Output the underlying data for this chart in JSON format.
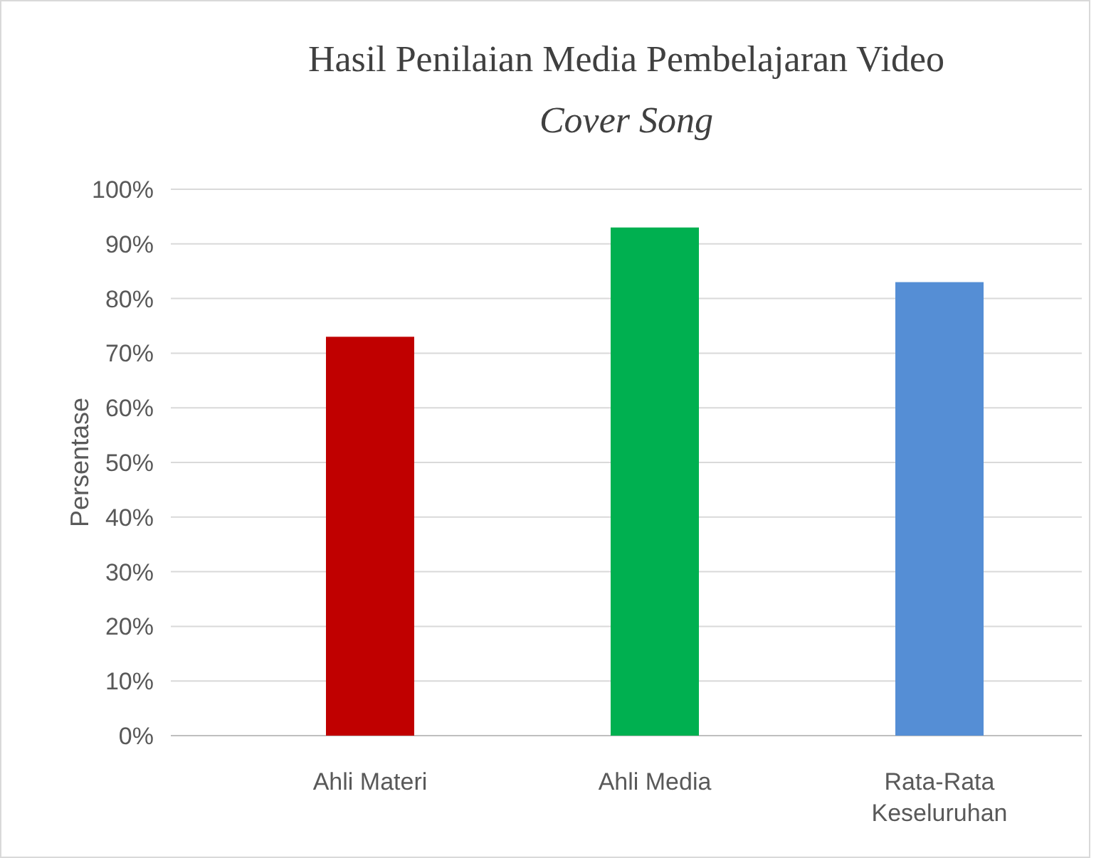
{
  "chart_data": {
    "type": "bar",
    "title": "Hasil Penilaian Media Pembelajaran Video",
    "subtitle": "Cover Song",
    "ylabel": "Persentase",
    "categories": [
      "Ahli Materi",
      "Ahli Media",
      "Rata-Rata Keseluruhan"
    ],
    "values": [
      73,
      93,
      83
    ],
    "colors": [
      "#c00000",
      "#00b050",
      "#558ed5"
    ],
    "ylim": [
      0,
      100
    ],
    "yticks": [
      {
        "value": 0,
        "label": "0%"
      },
      {
        "value": 10,
        "label": "10%"
      },
      {
        "value": 20,
        "label": "20%"
      },
      {
        "value": 30,
        "label": "30%"
      },
      {
        "value": 40,
        "label": "40%"
      },
      {
        "value": 50,
        "label": "50%"
      },
      {
        "value": 60,
        "label": "60%"
      },
      {
        "value": 70,
        "label": "70%"
      },
      {
        "value": 80,
        "label": "80%"
      },
      {
        "value": 90,
        "label": "90%"
      },
      {
        "value": 100,
        "label": "100%"
      }
    ],
    "grid": "y"
  }
}
